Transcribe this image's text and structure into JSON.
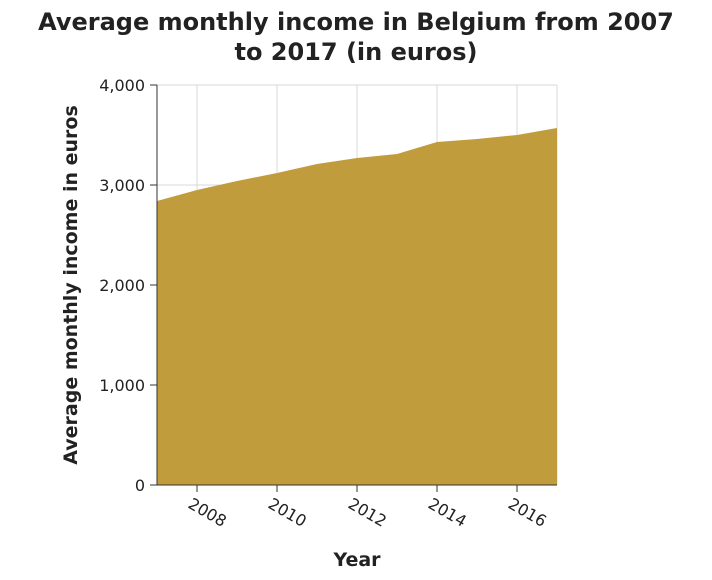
{
  "chart_data": {
    "type": "area",
    "title_lines": [
      "Average monthly income in Belgium from 2007",
      "to 2017 (in euros)"
    ],
    "xlabel": "Year",
    "ylabel": "Average monthly income in euros",
    "x": [
      2007,
      2008,
      2009,
      2010,
      2011,
      2012,
      2013,
      2014,
      2015,
      2016,
      2017
    ],
    "series": [
      {
        "values": [
          2840,
          2950,
          3040,
          3120,
          3210,
          3270,
          3310,
          3430,
          3460,
          3500,
          3570
        ]
      }
    ],
    "xlim": [
      2007,
      2017
    ],
    "ylim": [
      0,
      4000
    ],
    "x_ticks": [
      2008,
      2010,
      2012,
      2014,
      2016
    ],
    "x_tick_labels": [
      "2008",
      "2010",
      "2012",
      "2014",
      "2016"
    ],
    "y_ticks": [
      0,
      1000,
      2000,
      3000,
      4000
    ],
    "y_tick_labels": [
      "0",
      "1,000",
      "2,000",
      "3,000",
      "4,000"
    ],
    "grid": true,
    "fill_color": "#c09c3c"
  }
}
